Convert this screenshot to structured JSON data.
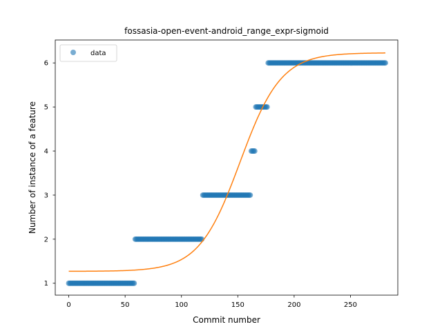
{
  "chart_data": {
    "type": "scatter",
    "title": "fossasia-open-event-android_range_expr-sigmoid",
    "xlabel": "Commit number",
    "ylabel": "Number of instance of a feature",
    "xlim": [
      -12,
      292
    ],
    "ylim": [
      0.73,
      6.52
    ],
    "xticks": [
      0,
      50,
      100,
      150,
      200,
      250
    ],
    "yticks": [
      1,
      2,
      3,
      4,
      5,
      6
    ],
    "grid": false,
    "legend": {
      "placement": "top-left",
      "entries": [
        "data"
      ]
    },
    "colors": {
      "data": "#1f77b4",
      "fit": "#ff7f0e"
    },
    "series": [
      {
        "name": "data",
        "kind": "scatter",
        "segments": [
          {
            "x_start": 0,
            "x_end": 58,
            "y": 1
          },
          {
            "x_start": 59,
            "x_end": 118,
            "y": 2
          },
          {
            "x_start": 119,
            "x_end": 161,
            "y": 3
          },
          {
            "x_start": 162,
            "x_end": 165,
            "y": 4
          },
          {
            "x_start": 166,
            "x_end": 176,
            "y": 5
          },
          {
            "x_start": 177,
            "x_end": 281,
            "y": 6
          }
        ]
      },
      {
        "kind": "line",
        "model": "sigmoid",
        "params": {
          "lower": 1.27,
          "upper": 6.23,
          "midpoint": 152,
          "rate": 0.055
        },
        "x_range": [
          0,
          281
        ]
      }
    ]
  }
}
